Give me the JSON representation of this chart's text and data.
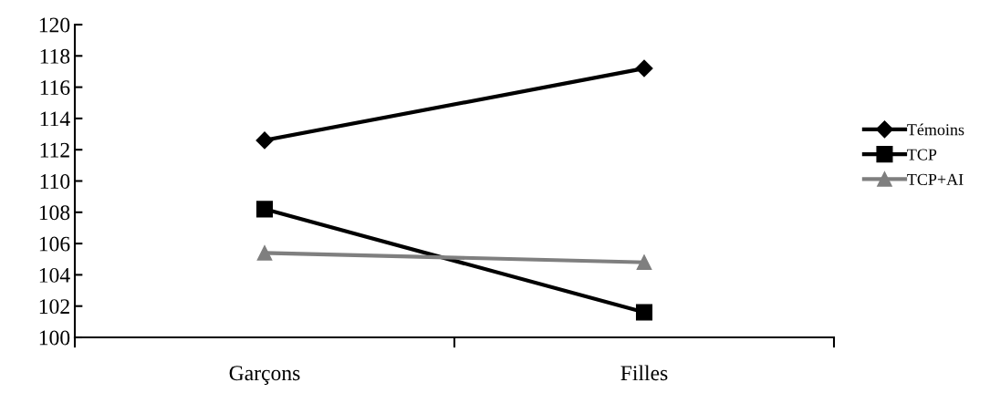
{
  "chart_data": {
    "type": "line",
    "categories": [
      "Garçons",
      "Filles"
    ],
    "series": [
      {
        "name": "Témoins",
        "color": "#000000",
        "values": [
          112.6,
          117.2
        ],
        "marker": "diamond"
      },
      {
        "name": "TCP",
        "color": "#000000",
        "values": [
          108.2,
          101.6
        ],
        "marker": "square"
      },
      {
        "name": "TCP+AI",
        "color": "#7f7f7f",
        "values": [
          105.4,
          104.8
        ],
        "marker": "triangle"
      }
    ],
    "ylim": [
      100,
      120
    ],
    "yticks": [
      100,
      102,
      104,
      106,
      108,
      110,
      112,
      114,
      116,
      118,
      120
    ],
    "grid": false,
    "legend": "right",
    "line_style": "solid"
  }
}
